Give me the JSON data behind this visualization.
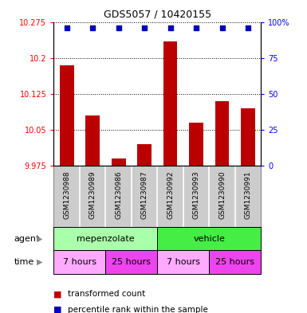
{
  "title": "GDS5057 / 10420155",
  "samples": [
    "GSM1230988",
    "GSM1230989",
    "GSM1230986",
    "GSM1230987",
    "GSM1230992",
    "GSM1230993",
    "GSM1230990",
    "GSM1230991"
  ],
  "transformed_counts": [
    10.185,
    10.08,
    9.99,
    10.02,
    10.235,
    10.065,
    10.11,
    10.095
  ],
  "percentile_ranks": [
    100,
    100,
    100,
    100,
    100,
    100,
    100,
    100
  ],
  "ylim": [
    9.975,
    10.275
  ],
  "yticks": [
    9.975,
    10.05,
    10.125,
    10.2,
    10.275
  ],
  "ytick_labels": [
    "9.975",
    "10.05",
    "10.125",
    "10.2",
    "10.275"
  ],
  "right_yticks": [
    0,
    25,
    50,
    75,
    100
  ],
  "right_ytick_labels": [
    "0",
    "25",
    "50",
    "75",
    "100%"
  ],
  "bar_color": "#bb0000",
  "dot_color": "#0000bb",
  "agent_groups": [
    {
      "label": "mepenzolate",
      "start": 0,
      "end": 4,
      "color": "#aaffaa"
    },
    {
      "label": "vehicle",
      "start": 4,
      "end": 8,
      "color": "#44ee44"
    }
  ],
  "time_groups": [
    {
      "label": "7 hours",
      "start": 0,
      "end": 2,
      "color": "#ffaaff"
    },
    {
      "label": "25 hours",
      "start": 2,
      "end": 4,
      "color": "#ee44ee"
    },
    {
      "label": "7 hours",
      "start": 4,
      "end": 6,
      "color": "#ffaaff"
    },
    {
      "label": "25 hours",
      "start": 6,
      "end": 8,
      "color": "#ee44ee"
    }
  ],
  "legend_bar_label": "transformed count",
  "legend_dot_label": "percentile rank within the sample",
  "agent_label": "agent",
  "time_label": "time",
  "sample_bg_color": "#cccccc",
  "sample_border_color": "#888888"
}
